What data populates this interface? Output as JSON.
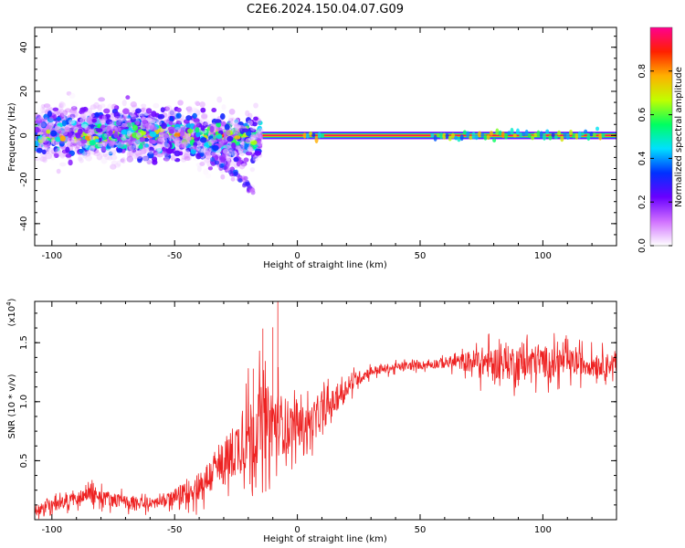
{
  "figure": {
    "title": "C2E6.2024.150.04.07.G09"
  },
  "chart_data": [
    {
      "type": "heatmap",
      "xlabel": "Height of straight line (km)",
      "ylabel": "Frequency (Hz)",
      "xlim": [
        -107,
        130
      ],
      "ylim": [
        -50,
        49
      ],
      "x_ticks": [
        -100,
        -50,
        0,
        50,
        100
      ],
      "x_tick_labels": [
        "-100",
        "-50",
        "0",
        "50",
        "100"
      ],
      "y_ticks": [
        -40,
        -20,
        0,
        20,
        40
      ],
      "y_tick_labels": [
        "-40",
        "-20",
        "0",
        "20",
        "40"
      ],
      "colorbar": {
        "label": "Normalized spectral amplitude",
        "range": [
          0,
          1
        ],
        "ticks": [
          0.0,
          0.2,
          0.4,
          0.6,
          0.8
        ],
        "tick_labels": [
          "0.0",
          "0.2",
          "0.4",
          "0.6",
          "0.8"
        ],
        "colormap": [
          "#ffffff",
          "#d070ff",
          "#6a00ff",
          "#0030ff",
          "#00e0ff",
          "#00ff60",
          "#c0ff00",
          "#ffb000",
          "#ff2000",
          "#ff0090"
        ]
      },
      "features": {
        "scattered_region_x": [
          -107,
          -15
        ],
        "scattered_freq_spread": [
          -12,
          8
        ],
        "descending_tail": [
          [
            -35,
            -10
          ],
          [
            -25,
            -18
          ],
          [
            -18,
            -25
          ]
        ],
        "steady_carrier_x": [
          -15,
          130
        ],
        "steady_carrier_freq": 0
      }
    },
    {
      "type": "line",
      "xlabel": "Height of straight line (km)",
      "ylabel": "SNR (10 * v/v)",
      "y_multiplier": "(x10",
      "y_multiplier_exp": "4",
      "multiplier_close": ")",
      "xlim": [
        -107,
        130
      ],
      "ylim": [
        0,
        18500
      ],
      "x_ticks": [
        -100,
        -50,
        0,
        50,
        100
      ],
      "x_tick_labels": [
        "-100",
        "-50",
        "0",
        "50",
        "100"
      ],
      "y_ticks": [
        5000,
        10000,
        15000
      ],
      "y_tick_labels": [
        "0.5",
        "1.0",
        "1.5"
      ],
      "color": "#ee2222",
      "series": [
        {
          "trend": [
            [
              -107,
              800
            ],
            [
              -95,
              1500
            ],
            [
              -85,
              2200
            ],
            [
              -75,
              1700
            ],
            [
              -65,
              1300
            ],
            [
              -55,
              1500
            ],
            [
              -45,
              2300
            ],
            [
              -38,
              3200
            ],
            [
              -30,
              4800
            ],
            [
              -25,
              6000
            ],
            [
              -20,
              7200
            ],
            [
              -15,
              8200
            ],
            [
              -10,
              8300
            ],
            [
              -5,
              8000
            ],
            [
              0,
              8000
            ],
            [
              5,
              8200
            ],
            [
              10,
              9000
            ],
            [
              15,
              10000
            ],
            [
              20,
              11200
            ],
            [
              25,
              12000
            ],
            [
              30,
              12600
            ],
            [
              40,
              12900
            ],
            [
              50,
              13100
            ],
            [
              60,
              13300
            ],
            [
              70,
              13400
            ],
            [
              80,
              13300
            ],
            [
              90,
              13300
            ],
            [
              100,
              13400
            ],
            [
              110,
              13300
            ],
            [
              120,
              13200
            ],
            [
              130,
              13200
            ]
          ],
          "noise": [
            [
              -107,
              600
            ],
            [
              -80,
              800
            ],
            [
              -55,
              600
            ],
            [
              -45,
              1200
            ],
            [
              -35,
              2000
            ],
            [
              -25,
              3000
            ],
            [
              -18,
              4000
            ],
            [
              -10,
              3800
            ],
            [
              -5,
              3000
            ],
            [
              0,
              2000
            ],
            [
              10,
              1800
            ],
            [
              20,
              1000
            ],
            [
              30,
              500
            ],
            [
              50,
              400
            ],
            [
              65,
              700
            ],
            [
              75,
              1600
            ],
            [
              90,
              1900
            ],
            [
              100,
              1700
            ],
            [
              120,
              1200
            ],
            [
              130,
              1100
            ]
          ],
          "spikes": [
            [
              -18,
              12800
            ],
            [
              -14,
              16200
            ],
            [
              -10,
              16300
            ],
            [
              -8,
              18500
            ],
            [
              -9,
              7000
            ]
          ]
        }
      ]
    }
  ]
}
